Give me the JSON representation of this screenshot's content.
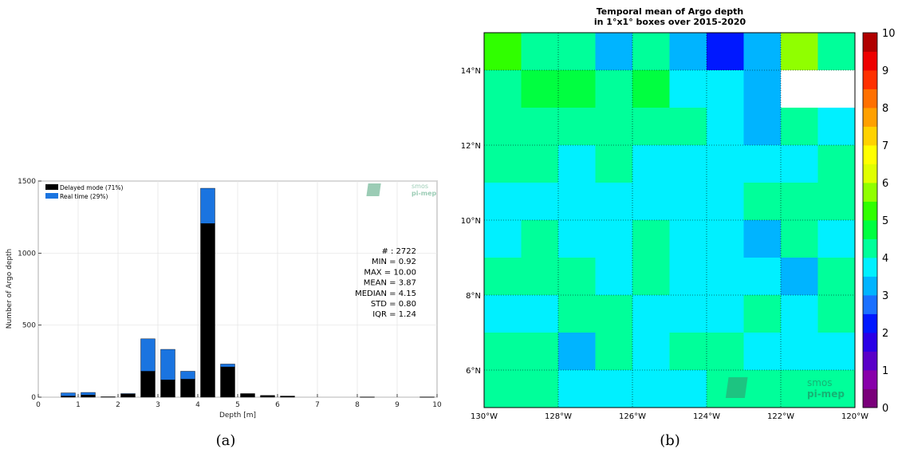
{
  "chart_data": [
    {
      "type": "bar",
      "stacked": true,
      "panel_label": "(a)",
      "xlabel": "Depth [m]",
      "ylabel": "Number of Argo depth",
      "xlim": [
        0,
        10
      ],
      "ylim": [
        0,
        1500
      ],
      "xticks": [
        0,
        1,
        2,
        3,
        4,
        5,
        6,
        7,
        8,
        9,
        10
      ],
      "yticks": [
        0,
        500,
        1000,
        1500
      ],
      "grid": true,
      "legend_position": "top-left",
      "bin_centers": [
        0.75,
        1.25,
        1.75,
        2.25,
        2.75,
        3.25,
        3.75,
        4.25,
        4.75,
        5.25,
        5.75,
        6.25,
        8.25,
        9.75
      ],
      "series": [
        {
          "name": "Delayed mode (71%)",
          "color": "#000000",
          "values": [
            8,
            15,
            3,
            22,
            180,
            120,
            125,
            1205,
            210,
            25,
            12,
            8,
            2,
            2
          ]
        },
        {
          "name": "Real time (29%)",
          "color": "#1a74e0",
          "values": [
            22,
            18,
            0,
            3,
            225,
            212,
            55,
            245,
            20,
            0,
            0,
            0,
            0,
            0
          ]
        }
      ],
      "stats": [
        "# : 2722",
        "MIN = 0.92",
        "MAX =  10.00",
        "MEAN = 3.87",
        "MEDIAN = 4.15",
        "STD = 0.80",
        "IQR = 1.24"
      ],
      "watermark": [
        "smos",
        "pi-mep"
      ]
    },
    {
      "type": "heatmap",
      "panel_label": "(b)",
      "title": [
        "Temporal mean of Argo depth",
        "in 1°x1° boxes over 2015-2020"
      ],
      "x_range": [
        -130,
        -120
      ],
      "y_range": [
        5,
        15
      ],
      "x_tick_labels": [
        "130°W",
        "128°W",
        "126°W",
        "124°W",
        "122°W",
        "120°W"
      ],
      "y_tick_labels": [
        "6°N",
        "8°N",
        "10°N",
        "12°N",
        "14°N"
      ],
      "colorbar_ticks": [
        "0",
        "1",
        "2",
        "3",
        "4",
        "5",
        "6",
        "7",
        "8",
        "9",
        "10"
      ],
      "colorbar_range": [
        0,
        10
      ],
      "colorbar_colors": [
        "#7a007a",
        "#8800aa",
        "#5a00c8",
        "#2a00e6",
        "#0018ff",
        "#1a70ff",
        "#00b4ff",
        "#00f0ff",
        "#00ff9a",
        "#00ff40",
        "#30ff00",
        "#90ff00",
        "#e0ff00",
        "#ffff00",
        "#ffd200",
        "#ffa000",
        "#ff7000",
        "#ff3000",
        "#ee0000",
        "#b00000"
      ],
      "grid": true,
      "rows_north_to_south": [
        [
          5.2,
          4.0,
          4.0,
          3.3,
          4.0,
          3.3,
          2.3,
          3.3,
          5.6,
          4.0
        ],
        [
          4.0,
          4.9,
          4.9,
          4.0,
          4.9,
          3.7,
          3.7,
          3.3,
          null,
          null
        ],
        [
          4.0,
          4.0,
          4.0,
          4.0,
          4.0,
          4.0,
          3.7,
          3.3,
          4.0,
          3.7
        ],
        [
          4.0,
          4.0,
          3.7,
          4.0,
          3.7,
          3.7,
          3.7,
          3.7,
          3.7,
          4.0
        ],
        [
          3.7,
          3.7,
          3.7,
          3.7,
          3.7,
          3.7,
          3.7,
          4.0,
          4.0,
          4.0
        ],
        [
          3.7,
          4.0,
          3.7,
          3.7,
          4.0,
          3.7,
          3.7,
          3.3,
          4.0,
          3.7
        ],
        [
          4.0,
          4.0,
          4.0,
          3.7,
          4.0,
          3.7,
          3.7,
          3.7,
          3.3,
          4.0
        ],
        [
          3.7,
          3.7,
          4.0,
          4.0,
          3.7,
          3.7,
          3.7,
          4.0,
          3.7,
          4.0
        ],
        [
          4.0,
          4.0,
          3.3,
          4.0,
          3.7,
          4.0,
          4.0,
          3.7,
          3.7,
          3.7
        ],
        [
          4.0,
          4.0,
          3.7,
          3.7,
          3.7,
          3.7,
          4.0,
          4.0,
          4.0,
          4.0
        ]
      ],
      "watermark": [
        "smos",
        "pi-mep"
      ]
    }
  ]
}
